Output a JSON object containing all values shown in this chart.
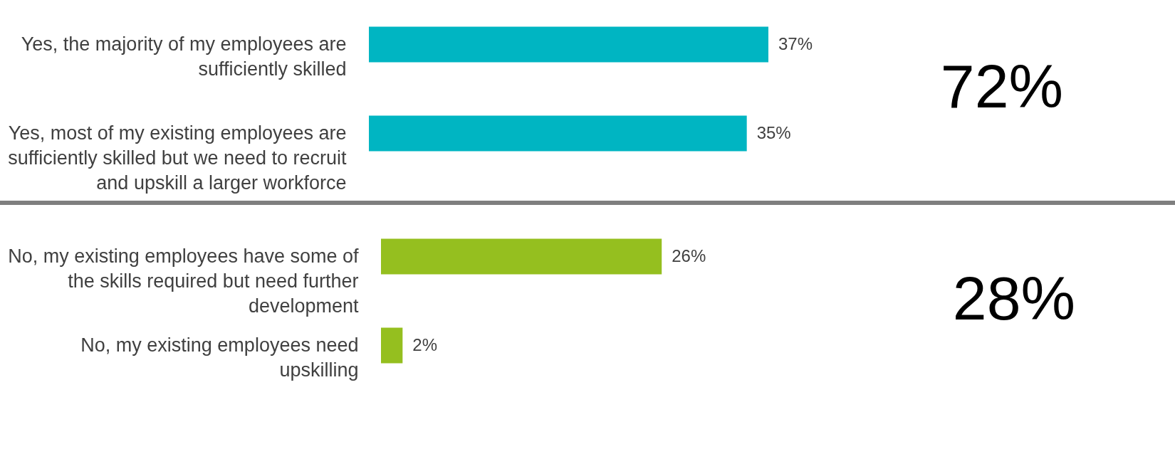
{
  "chart_data": [
    {
      "type": "bar",
      "orientation": "horizontal",
      "categories": [
        "Yes, the majority of my employees are sufficiently skilled",
        "Yes, most of my existing employees are sufficiently skilled but we need to recruit and upskill a larger workforce"
      ],
      "values": [
        37,
        35
      ],
      "color": "#00b5c2",
      "data_labels": true,
      "value_labels": [
        "37%",
        "35%"
      ],
      "annotations": [
        "72%"
      ]
    },
    {
      "type": "bar",
      "orientation": "horizontal",
      "categories": [
        "No, my existing employees have some of the skills required but need further development",
        "No, my existing employees need upskilling"
      ],
      "values": [
        26,
        2
      ],
      "color": "#95bf1f",
      "data_labels": true,
      "value_labels": [
        "26%",
        "2%"
      ],
      "annotations": [
        "28%"
      ]
    }
  ]
}
